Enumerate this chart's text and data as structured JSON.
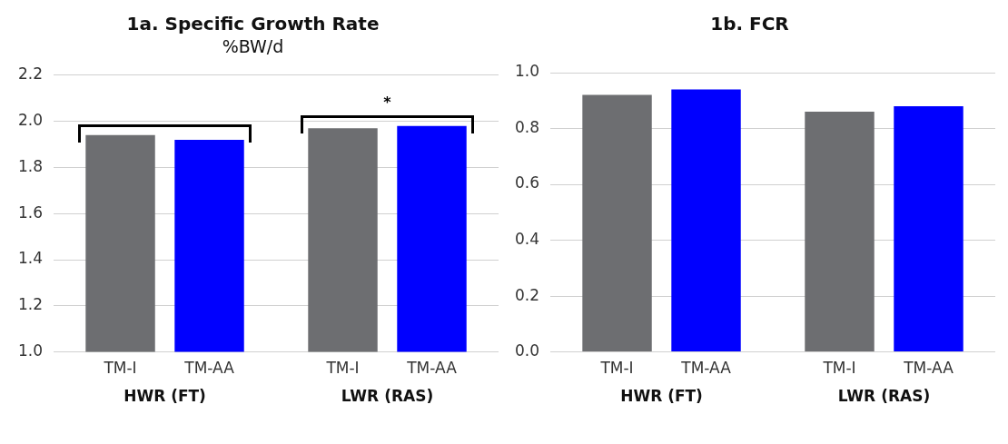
{
  "chart_data": [
    {
      "type": "bar",
      "title": "1a. Specific Growth Rate",
      "subtitle": "%BW/d",
      "categories": [
        "HWR (FT)",
        "LWR (RAS)"
      ],
      "series": [
        {
          "name": "TM-I",
          "color": "#6d6e71",
          "values": [
            1.94,
            1.97
          ]
        },
        {
          "name": "TM-AA",
          "color": "#0000ff",
          "values": [
            1.92,
            1.98
          ]
        }
      ],
      "ylim": [
        1.0,
        2.2
      ],
      "yticks": [
        {
          "value": 1.0,
          "label": "1.0"
        },
        1.2,
        1.4,
        1.6,
        1.8,
        {
          "value": 2.0,
          "label": "2.0"
        },
        2.2
      ],
      "grid": "y",
      "legend": false,
      "annotations": [
        "*"
      ]
    },
    {
      "type": "bar",
      "title": "1b. FCR",
      "categories": [
        "HWR (FT)",
        "LWR (RAS)"
      ],
      "series": [
        {
          "name": "TM-I",
          "color": "#6d6e71",
          "values": [
            0.92,
            0.86
          ]
        },
        {
          "name": "TM-AA",
          "color": "#0000ff",
          "values": [
            0.94,
            0.88
          ]
        }
      ],
      "ylim": [
        0.0,
        1.0
      ],
      "yticks": [
        {
          "value": 0.0,
          "label": "0.0"
        },
        0.2,
        0.4,
        0.6,
        0.8,
        {
          "value": 1.0,
          "label": "1.0"
        }
      ],
      "grid": "y",
      "legend": false
    }
  ]
}
